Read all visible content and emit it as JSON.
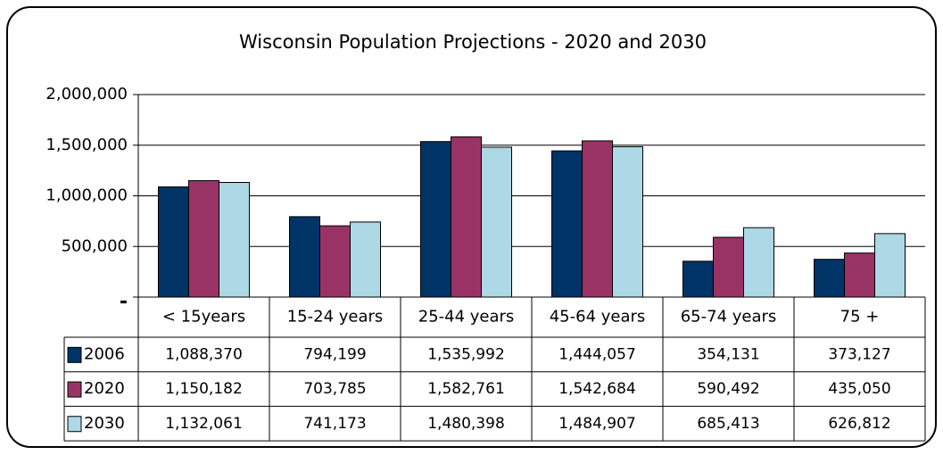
{
  "chart_data": {
    "type": "bar",
    "title": "Wisconsin Population Projections - 2020 and 2030",
    "categories": [
      "< 15years",
      "15-24 years",
      "25-44 years",
      "45-64 years",
      "65-74 years",
      "75 +"
    ],
    "series": [
      {
        "name": "2006",
        "color": "#003366",
        "values": [
          1088370,
          794199,
          1535992,
          1444057,
          354131,
          373127
        ],
        "value_labels": [
          "1,088,370",
          "794,199",
          "1,535,992",
          "1,444,057",
          "354,131",
          "373,127"
        ]
      },
      {
        "name": "2020",
        "color": "#993366",
        "values": [
          1150182,
          703785,
          1582761,
          1542684,
          590492,
          435050
        ],
        "value_labels": [
          "1,150,182",
          "703,785",
          "1,582,761",
          "1,542,684",
          "590,492",
          "435,050"
        ]
      },
      {
        "name": "2030",
        "color": "#add8e6",
        "values": [
          1132061,
          741173,
          1480398,
          1484907,
          685413,
          626812
        ],
        "value_labels": [
          "1,132,061",
          "741,173",
          "1,480,398",
          "1,484,907",
          "685,413",
          "626,812"
        ]
      }
    ],
    "ylim": [
      0,
      2000000
    ],
    "yticks": [
      {
        "value": 0,
        "label": "-"
      },
      {
        "value": 500000,
        "label": "500,000"
      },
      {
        "value": 1000000,
        "label": "1,000,000"
      },
      {
        "value": 1500000,
        "label": "1,500,000"
      },
      {
        "value": 2000000,
        "label": "2,000,000"
      }
    ],
    "grid": true
  }
}
